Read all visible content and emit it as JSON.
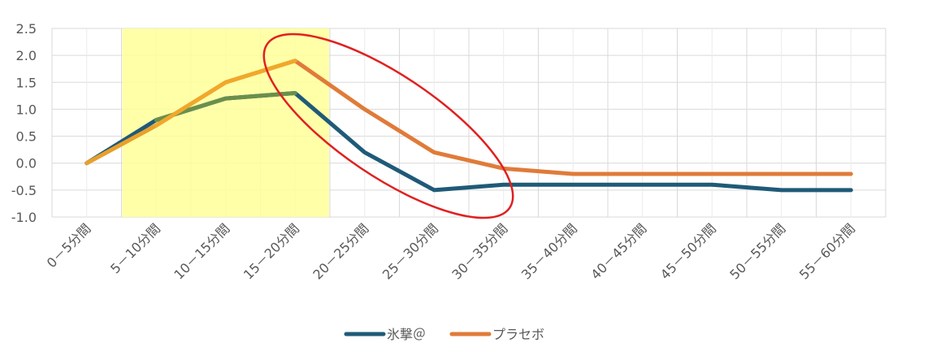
{
  "chart_data": {
    "type": "line",
    "categories": [
      "0－5分間",
      "5－10分間",
      "10－15分間",
      "15－20分間",
      "20－25分間",
      "25－30分間",
      "30－35分間",
      "35－40分間",
      "40－45分間",
      "45－50分間",
      "50－55分間",
      "55－60分間"
    ],
    "ylim": [
      -1.0,
      2.5
    ],
    "yticks": [
      "2.5",
      "2.0",
      "1.5",
      "1.0",
      "0.5",
      "0.0",
      "-0.5",
      "-1.0"
    ],
    "ytick_values": [
      2.5,
      2.0,
      1.5,
      1.0,
      0.5,
      0.0,
      -0.5,
      -1.0
    ],
    "grid": true,
    "legend_position": "bottom",
    "highlight_range": [
      "5－10分間",
      "15－20分間"
    ],
    "highlight_color": "#ffff99",
    "series": [
      {
        "name": "氷撃＠",
        "color": "#1f5a78",
        "values": [
          0,
          0.8,
          1.2,
          1.3,
          0.2,
          -0.5,
          -0.4,
          -0.4,
          -0.4,
          -0.4,
          -0.5,
          -0.5
        ]
      },
      {
        "name": "プラセボ",
        "color": "#e07b39",
        "values": [
          0,
          0.7,
          1.5,
          1.9,
          1.0,
          0.2,
          -0.1,
          -0.2,
          -0.2,
          -0.2,
          -0.2,
          -0.2
        ]
      }
    ],
    "overlap_color": "#6a8f4c",
    "annotation": {
      "type": "ellipse",
      "color": "#e02020"
    }
  }
}
